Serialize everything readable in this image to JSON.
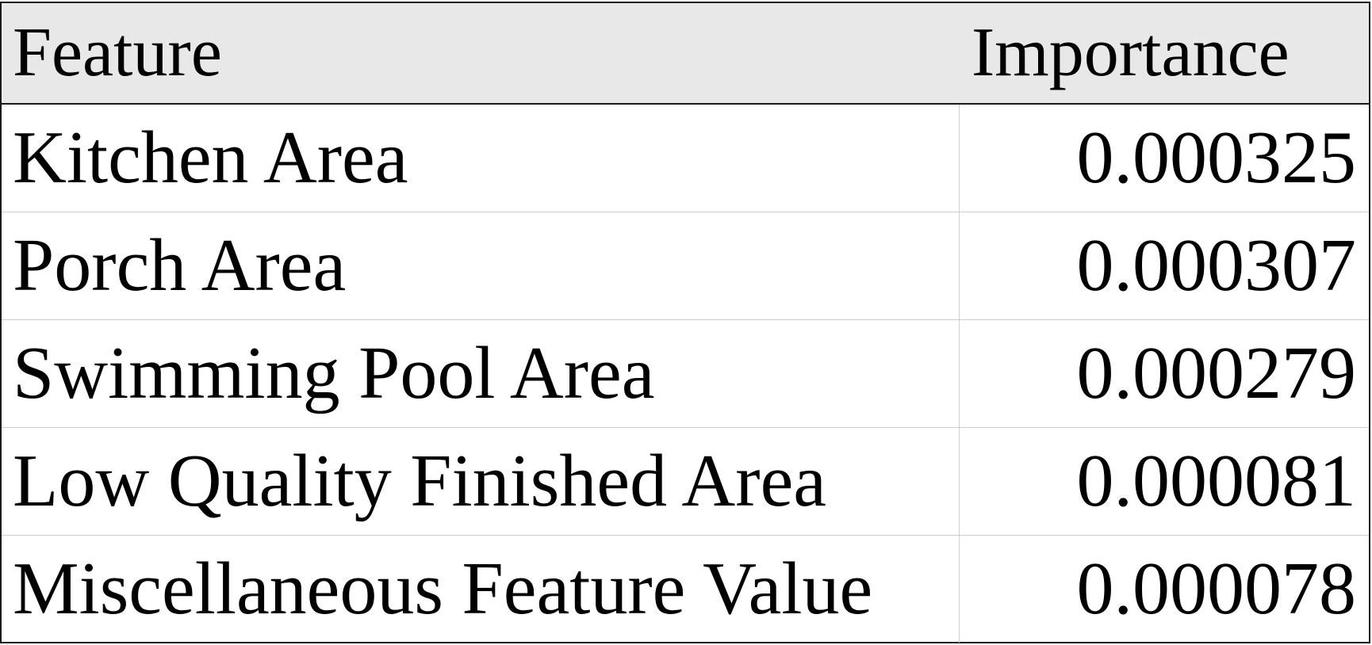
{
  "chart_data": {
    "type": "table",
    "columns": [
      "Feature",
      "Importance"
    ],
    "rows": [
      [
        "Kitchen Area",
        "0.000325"
      ],
      [
        "Porch Area",
        "0.000307"
      ],
      [
        "Swimming Pool Area",
        "0.000279"
      ],
      [
        "Low Quality Finished Area",
        "0.000081"
      ],
      [
        "Miscellaneous Feature Value",
        "0.000078"
      ]
    ]
  },
  "colors": {
    "header_background": "#e8e8e8",
    "border": "#1a1a1a",
    "grid_line": "#cfcfcf",
    "text": "#000000"
  }
}
